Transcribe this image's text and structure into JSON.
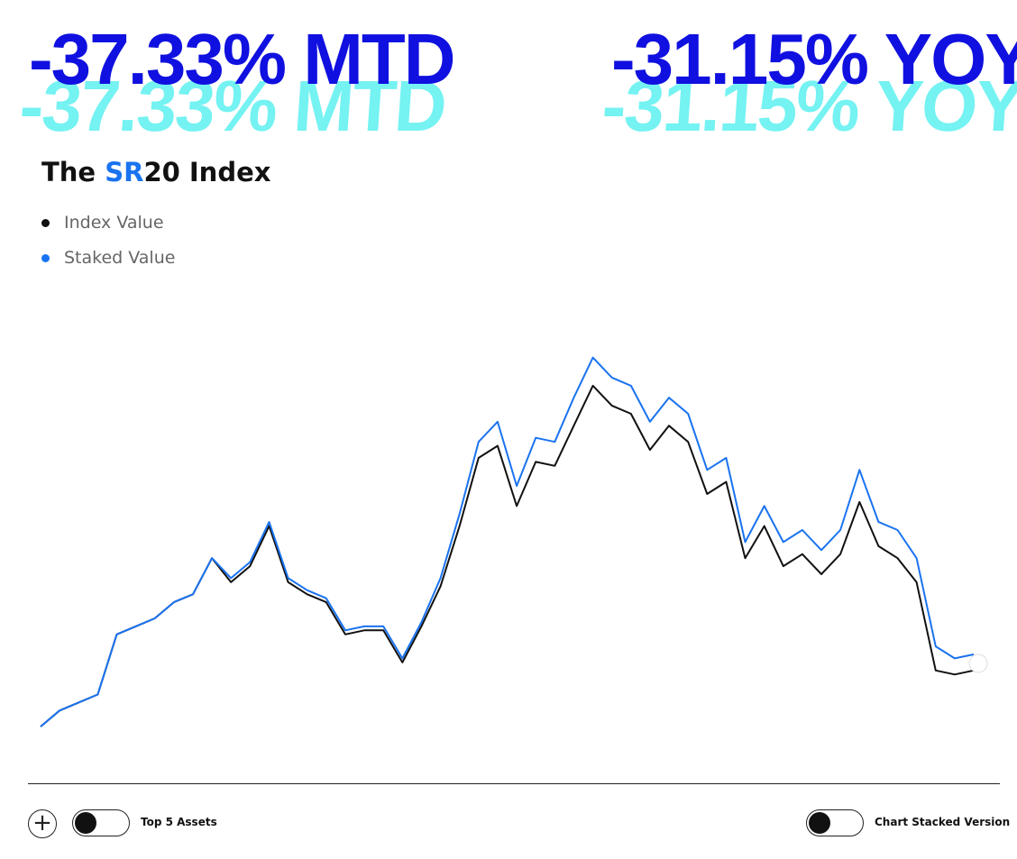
{
  "header": {
    "mtd": "-37.33% MTD",
    "yoy": "-31.15% YOY",
    "title_prefix": "The",
    "title_highlight": "SR",
    "title_suffix": "20 Index"
  },
  "chart_data": {
    "type": "line",
    "ylim": [
      0,
      100
    ],
    "series": [
      {
        "name": "Index Value",
        "color": "#111111",
        "values": [
          2,
          6,
          8,
          10,
          25,
          27,
          29,
          33,
          35,
          44,
          38,
          42,
          52,
          38,
          35,
          33,
          25,
          26,
          26,
          18,
          27,
          37,
          52,
          69,
          72,
          57,
          68,
          67,
          77,
          87,
          82,
          80,
          71,
          77,
          73,
          60,
          63,
          44,
          52,
          42,
          45,
          40,
          45,
          58,
          47,
          44,
          38,
          16,
          15,
          16
        ]
      },
      {
        "name": "Staked Value",
        "color": "#1a73f0",
        "values": [
          2,
          6,
          8,
          10,
          25,
          27,
          29,
          33,
          35,
          44,
          39,
          43,
          53,
          39,
          36,
          34,
          26,
          27,
          27,
          19,
          28,
          39,
          55,
          73,
          78,
          62,
          74,
          73,
          84,
          94,
          89,
          87,
          78,
          84,
          80,
          66,
          69,
          48,
          57,
          48,
          51,
          46,
          51,
          66,
          53,
          51,
          44,
          22,
          19,
          20
        ]
      }
    ]
  },
  "controls": {
    "top5": "Top 5 Assets",
    "stacked": "Chart Stacked Version"
  }
}
